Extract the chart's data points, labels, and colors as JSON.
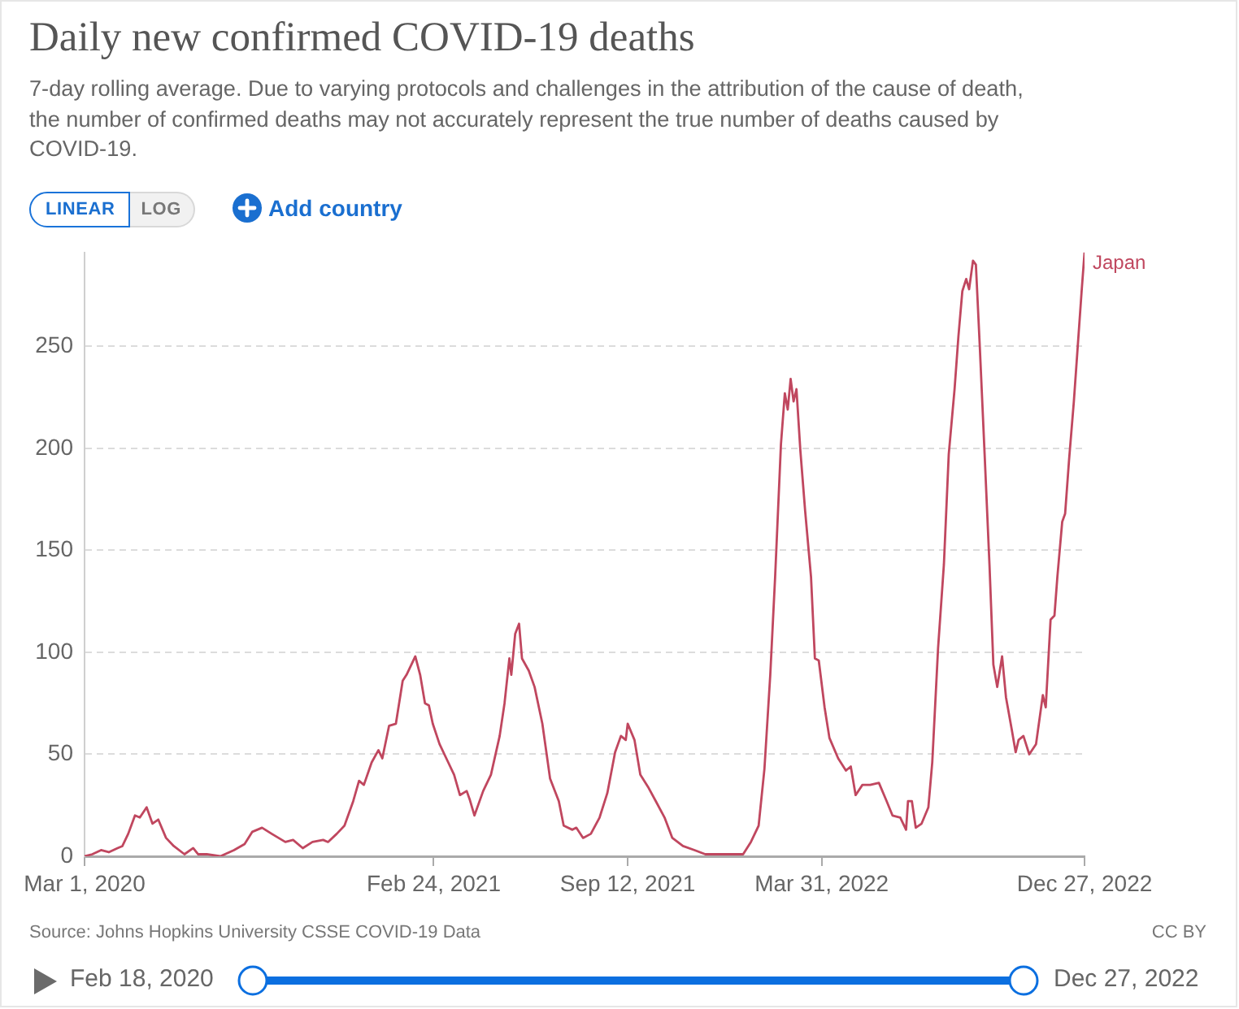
{
  "chart_data": {
    "type": "line",
    "title": "Daily new confirmed COVID-19 deaths",
    "subtitle": "7-day rolling average. Due to varying protocols and challenges in the attribution of the cause of death, the number of confirmed deaths may not accurately represent the true number of deaths caused by COVID-19.",
    "x": [
      "2020-03-01",
      "2020-03-09",
      "2020-03-18",
      "2020-03-26",
      "2020-04-04",
      "2020-04-09",
      "2020-04-15",
      "2020-04-22",
      "2020-04-27",
      "2020-05-04",
      "2020-05-10",
      "2020-05-16",
      "2020-05-24",
      "2020-06-01",
      "2020-06-12",
      "2020-06-21",
      "2020-06-26",
      "2020-07-05",
      "2020-07-19",
      "2020-08-02",
      "2020-08-13",
      "2020-08-21",
      "2020-08-31",
      "2020-09-10",
      "2020-09-24",
      "2020-10-02",
      "2020-10-12",
      "2020-10-22",
      "2020-11-02",
      "2020-11-07",
      "2020-11-16",
      "2020-11-24",
      "2020-12-03",
      "2020-12-09",
      "2020-12-14",
      "2020-12-22",
      "2020-12-29",
      "2021-01-02",
      "2021-01-09",
      "2021-01-16",
      "2021-01-23",
      "2021-01-27",
      "2021-02-05",
      "2021-02-10",
      "2021-02-15",
      "2021-02-19",
      "2021-02-23",
      "2021-03-02",
      "2021-03-10",
      "2021-03-17",
      "2021-03-23",
      "2021-03-30",
      "2021-04-02",
      "2021-04-07",
      "2021-04-16",
      "2021-04-24",
      "2021-05-03",
      "2021-05-08",
      "2021-05-13",
      "2021-05-15",
      "2021-05-19",
      "2021-05-23",
      "2021-05-26",
      "2021-06-02",
      "2021-06-08",
      "2021-06-16",
      "2021-06-24",
      "2021-07-03",
      "2021-07-08",
      "2021-07-17",
      "2021-07-21",
      "2021-07-28",
      "2021-08-05",
      "2021-08-14",
      "2021-08-22",
      "2021-08-30",
      "2021-09-05",
      "2021-09-10",
      "2021-09-12",
      "2021-09-19",
      "2021-09-25",
      "2021-10-03",
      "2021-10-11",
      "2021-10-20",
      "2021-10-28",
      "2021-11-08",
      "2021-11-20",
      "2021-12-01",
      "2021-12-23",
      "2022-01-09",
      "2022-01-17",
      "2022-01-25",
      "2022-01-31",
      "2022-02-06",
      "2022-02-11",
      "2022-02-17",
      "2022-02-21",
      "2022-02-24",
      "2022-02-27",
      "2022-03-02",
      "2022-03-05",
      "2022-03-09",
      "2022-03-14",
      "2022-03-20",
      "2022-03-24",
      "2022-03-28",
      "2022-04-03",
      "2022-04-08",
      "2022-04-17",
      "2022-04-25",
      "2022-04-30",
      "2022-05-05",
      "2022-05-12",
      "2022-05-20",
      "2022-05-29",
      "2022-06-06",
      "2022-06-12",
      "2022-06-20",
      "2022-06-26",
      "2022-06-28",
      "2022-07-02",
      "2022-07-06",
      "2022-07-12",
      "2022-07-19",
      "2022-07-23",
      "2022-07-29",
      "2022-08-04",
      "2022-08-09",
      "2022-08-15",
      "2022-08-19",
      "2022-08-23",
      "2022-08-27",
      "2022-08-30",
      "2022-09-03",
      "2022-09-06",
      "2022-09-10",
      "2022-09-15",
      "2022-09-20",
      "2022-09-24",
      "2022-09-28",
      "2022-10-03",
      "2022-10-07",
      "2022-10-13",
      "2022-10-17",
      "2022-10-20",
      "2022-10-25",
      "2022-10-31",
      "2022-11-07",
      "2022-11-14",
      "2022-11-17",
      "2022-11-22",
      "2022-11-26",
      "2022-11-29",
      "2022-12-04",
      "2022-12-07",
      "2022-12-11",
      "2022-12-16",
      "2022-12-20",
      "2022-12-24",
      "2022-12-27"
    ],
    "series": [
      {
        "name": "Japan",
        "color": "#c0475f",
        "values": [
          0,
          1,
          3,
          2,
          4,
          5,
          11,
          20,
          19,
          24,
          16,
          18,
          9,
          5,
          1,
          4,
          1,
          1,
          0,
          3,
          6,
          12,
          14,
          11,
          7,
          8,
          4,
          7,
          8,
          7,
          11,
          15,
          27,
          37,
          35,
          46,
          52,
          48,
          64,
          65,
          86,
          89,
          98,
          89,
          75,
          74,
          65,
          55,
          47,
          40,
          30,
          32,
          28,
          20,
          32,
          40,
          59,
          75,
          97,
          89,
          109,
          114,
          97,
          91,
          83,
          65,
          38,
          27,
          15,
          13,
          14,
          9,
          11,
          19,
          31,
          51,
          59,
          57,
          65,
          57,
          40,
          34,
          27,
          19,
          9,
          5,
          3,
          1,
          1,
          1,
          7,
          15,
          43,
          89,
          137,
          202,
          227,
          219,
          234,
          223,
          229,
          199,
          169,
          137,
          97,
          96,
          73,
          58,
          48,
          42,
          44,
          30,
          35,
          35,
          36,
          27,
          20,
          19,
          13,
          27,
          27,
          14,
          16,
          24,
          46,
          102,
          143,
          197,
          229,
          255,
          277,
          283,
          278,
          292,
          290,
          250,
          197,
          143,
          94,
          83,
          98,
          78,
          62,
          51,
          57,
          59,
          50,
          55,
          79,
          73,
          116,
          118,
          137,
          164,
          168,
          194,
          223,
          250,
          277,
          296
        ]
      }
    ],
    "xlim": [
      "2020-03-01",
      "2022-12-27"
    ],
    "xticks": [
      {
        "value": "2020-03-01",
        "label": "Mar 1, 2020"
      },
      {
        "value": "2021-02-24",
        "label": "Feb 24, 2021"
      },
      {
        "value": "2021-09-12",
        "label": "Sep 12, 2021"
      },
      {
        "value": "2022-03-31",
        "label": "Mar 31, 2022"
      },
      {
        "value": "2022-12-27",
        "label": "Dec 27, 2022"
      }
    ],
    "ylim": [
      0,
      296
    ],
    "yticks": [
      0,
      50,
      100,
      150,
      200,
      250
    ],
    "grid": "y",
    "annotations": [
      "Source: Johns Hopkins University CSSE COVID-19 Data",
      "CC BY",
      "LINEAR",
      "LOG",
      "Add country",
      "Feb 18, 2020",
      "Dec 27, 2022"
    ]
  }
}
